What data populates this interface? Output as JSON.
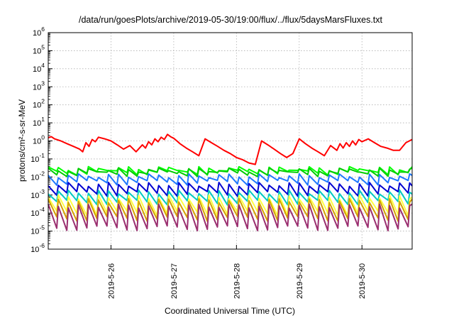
{
  "chart_data": {
    "type": "line",
    "title": "/data/run/goesPlots/archive/2019-05-30/19:00/flux/../flux/5daysMarsFluxes.txt",
    "xlabel": "Coordinated Universal Time (UTC)",
    "ylabel": "protons/cm²-s-sr-MeV",
    "y_scale": "log",
    "ylim": [
      1e-06,
      1000000.0
    ],
    "xlim": [
      0,
      5.8
    ],
    "x_origin_date": "2019-05-25",
    "grid": true,
    "legend": "none",
    "x_ticks": [
      {
        "value": 1,
        "label": "2019-5-26"
      },
      {
        "value": 2,
        "label": "2019-5-27"
      },
      {
        "value": 3,
        "label": "2019-5-28"
      },
      {
        "value": 4,
        "label": "2019-5-29"
      },
      {
        "value": 5,
        "label": "2019-5-30"
      }
    ],
    "y_ticks": [
      {
        "value": 1000000.0,
        "base": "10",
        "exp": "6"
      },
      {
        "value": 100000.0,
        "base": "10",
        "exp": "5"
      },
      {
        "value": 10000.0,
        "base": "10",
        "exp": "4"
      },
      {
        "value": 1000.0,
        "base": "10",
        "exp": "3"
      },
      {
        "value": 100.0,
        "base": "10",
        "exp": "2"
      },
      {
        "value": 10.0,
        "base": "10",
        "exp": "1"
      },
      {
        "value": 1.0,
        "base": "10",
        "exp": "0"
      },
      {
        "value": 0.1,
        "base": "10",
        "exp": "-1"
      },
      {
        "value": 0.01,
        "base": "10",
        "exp": "-2"
      },
      {
        "value": 0.001,
        "base": "10",
        "exp": "-3"
      },
      {
        "value": 0.0001,
        "base": "10",
        "exp": "-4"
      },
      {
        "value": 1e-05,
        "base": "10",
        "exp": "-5"
      },
      {
        "value": 1e-06,
        "base": "10",
        "exp": "-6"
      }
    ],
    "series": [
      {
        "color": "#ff0000",
        "x": [
          0.0,
          0.05,
          0.1,
          0.2,
          0.3,
          0.4,
          0.5,
          0.55,
          0.6,
          0.65,
          0.7,
          0.75,
          0.8,
          0.9,
          1.0,
          1.1,
          1.2,
          1.3,
          1.4,
          1.5,
          1.55,
          1.6,
          1.65,
          1.7,
          1.75,
          1.8,
          1.85,
          1.9,
          1.95,
          2.0,
          2.05,
          2.1,
          2.2,
          2.3,
          2.4,
          2.5,
          2.6,
          2.7,
          2.8,
          2.9,
          3.0,
          3.1,
          3.2,
          3.3,
          3.4,
          3.5,
          3.6,
          3.7,
          3.8,
          3.9,
          4.0,
          4.1,
          4.2,
          4.3,
          4.4,
          4.5,
          4.6,
          4.65,
          4.7,
          4.75,
          4.8,
          4.85,
          4.9,
          4.95,
          5.0,
          5.1,
          5.2,
          5.3,
          5.4,
          5.5,
          5.6,
          5.7,
          5.8
        ],
        "y": [
          1.5,
          1.7,
          1.3,
          1.0,
          0.7,
          0.5,
          0.35,
          0.25,
          0.8,
          0.5,
          1.2,
          0.9,
          1.6,
          1.3,
          1.0,
          0.6,
          0.35,
          0.55,
          0.25,
          0.6,
          0.4,
          0.9,
          0.6,
          1.3,
          0.9,
          1.6,
          1.2,
          2.3,
          1.7,
          1.4,
          1.0,
          0.7,
          0.4,
          0.25,
          0.15,
          1.3,
          0.8,
          0.5,
          0.3,
          0.2,
          0.12,
          0.09,
          0.06,
          0.05,
          1.0,
          0.6,
          0.35,
          0.2,
          0.12,
          0.2,
          1.3,
          0.7,
          0.4,
          0.25,
          0.15,
          0.55,
          0.3,
          0.7,
          0.4,
          0.8,
          0.5,
          1.0,
          0.6,
          1.2,
          0.9,
          1.3,
          0.8,
          0.5,
          0.4,
          0.3,
          0.3,
          0.8,
          1.2
        ]
      },
      {
        "color": "#00ff00",
        "base": 0.03,
        "low": 0.018,
        "period": 0.16
      },
      {
        "color": "#00cc00",
        "base": 0.025,
        "low": 0.015,
        "period": 0.16
      },
      {
        "color": "#1e78ff",
        "base": 0.012,
        "low": 0.005,
        "period": 0.16
      },
      {
        "color": "#0000d0",
        "base": 0.004,
        "low": 0.0012,
        "period": 0.16
      },
      {
        "color": "#00c8c0",
        "base": 0.0015,
        "low": 0.0004,
        "period": 0.16
      },
      {
        "color": "#ffff40",
        "base": 0.0008,
        "low": 0.0001,
        "period": 0.16
      },
      {
        "color": "#d4a000",
        "base": 0.0005,
        "low": 5e-05,
        "period": 0.16
      },
      {
        "color": "#9b2f70",
        "base": 0.00025,
        "low": 1.5e-05,
        "period": 0.16
      }
    ]
  }
}
